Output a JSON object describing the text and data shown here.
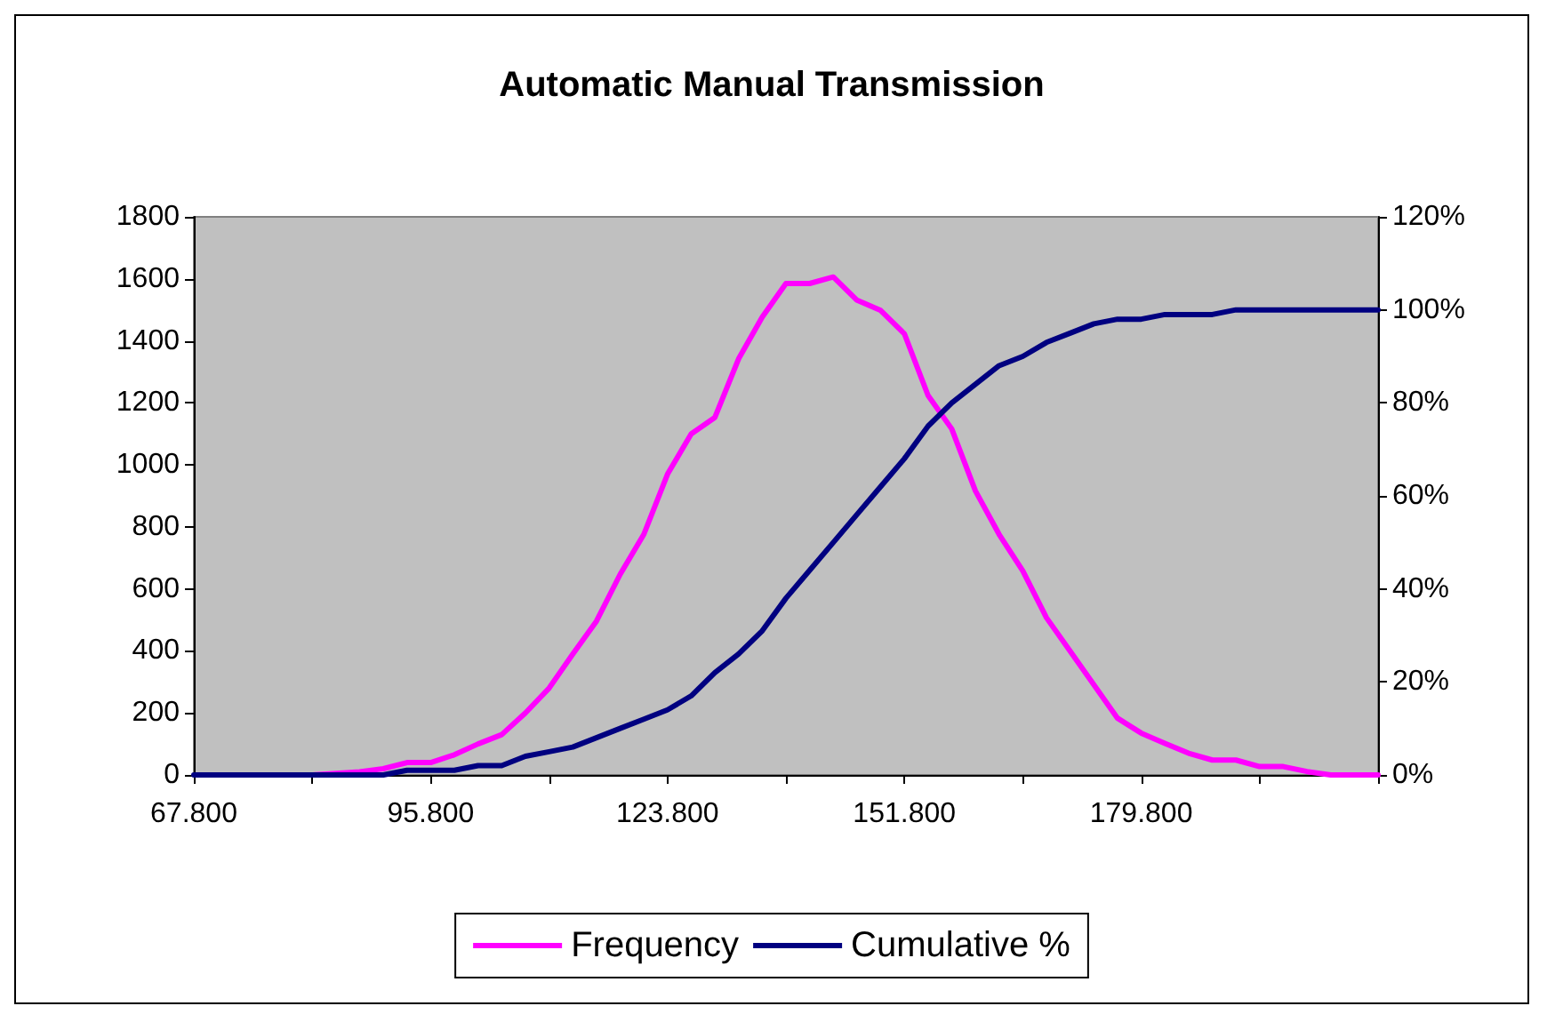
{
  "chart_data": {
    "type": "line",
    "title": "Automatic Manual Transmission",
    "x": [
      67.8,
      70.6,
      73.4,
      76.2,
      79,
      81.8,
      84.6,
      87.4,
      90.2,
      93,
      95.8,
      98.6,
      101.4,
      104.2,
      107,
      109.8,
      112.6,
      115.4,
      118.2,
      121,
      123.8,
      126.6,
      129.4,
      132.2,
      135,
      137.8,
      140.6,
      143.4,
      146.2,
      149,
      151.8,
      154.6,
      157.4,
      160.2,
      163,
      165.8,
      168.6,
      171.4,
      174.2,
      177,
      179.8,
      182.6,
      185.4,
      188.2,
      191,
      193.8,
      196.6,
      199.4,
      202.2,
      205,
      207.8
    ],
    "series": [
      {
        "name": "Frequency",
        "color": "#ff00ff",
        "values": [
          null,
          null,
          null,
          null,
          0,
          0,
          5,
          10,
          20,
          40,
          40,
          65,
          100,
          130,
          200,
          280,
          390,
          496,
          647,
          776,
          970,
          1100,
          1153,
          1342,
          1477,
          1585,
          1585,
          1606,
          1531,
          1498,
          1423,
          1224,
          1116,
          916,
          776,
          658,
          507,
          399,
          291,
          183,
          135,
          102,
          70,
          48,
          48,
          27,
          27,
          11,
          0,
          0,
          0
        ]
      },
      {
        "name": "Cumulative %",
        "color": "#000080",
        "axis": "y2",
        "values": [
          0,
          0,
          0,
          0,
          0,
          0,
          0,
          0,
          0,
          1,
          1,
          1,
          2,
          2,
          4,
          5,
          6,
          8,
          10,
          12,
          14,
          17,
          22,
          26,
          31,
          38,
          44,
          50,
          56,
          62,
          68,
          75,
          80,
          84,
          88,
          90,
          93,
          95,
          97,
          98,
          98,
          99,
          99,
          99,
          100,
          100,
          100,
          100,
          100,
          100,
          100
        ]
      }
    ],
    "xlim": [
      67.8,
      207.8
    ],
    "xticks": [
      {
        "value": 67.8,
        "label": "67.800"
      },
      {
        "value": 81.8,
        "label": null
      },
      {
        "value": 95.8,
        "label": "95.800"
      },
      {
        "value": 109.8,
        "label": null
      },
      {
        "value": 123.8,
        "label": "123.800"
      },
      {
        "value": 137.8,
        "label": null
      },
      {
        "value": 151.8,
        "label": "151.800"
      },
      {
        "value": 165.8,
        "label": null
      },
      {
        "value": 179.8,
        "label": "179.800"
      },
      {
        "value": 193.8,
        "label": null
      },
      {
        "value": 207.8,
        "label": null
      }
    ],
    "ylim": [
      0,
      1800
    ],
    "yticks": [
      0,
      200,
      400,
      600,
      800,
      1000,
      1200,
      1400,
      1600,
      1800
    ],
    "y2lim": [
      0,
      120
    ],
    "y2ticks": [
      {
        "value": 0,
        "label": "0%"
      },
      {
        "value": 20,
        "label": "20%"
      },
      {
        "value": 40,
        "label": "40%"
      },
      {
        "value": 60,
        "label": "60%"
      },
      {
        "value": 80,
        "label": "80%"
      },
      {
        "value": 100,
        "label": "100%"
      },
      {
        "value": 120,
        "label": "120%"
      }
    ],
    "grid": false,
    "legend": "bottom",
    "marker": "none",
    "line_style": "solid"
  }
}
